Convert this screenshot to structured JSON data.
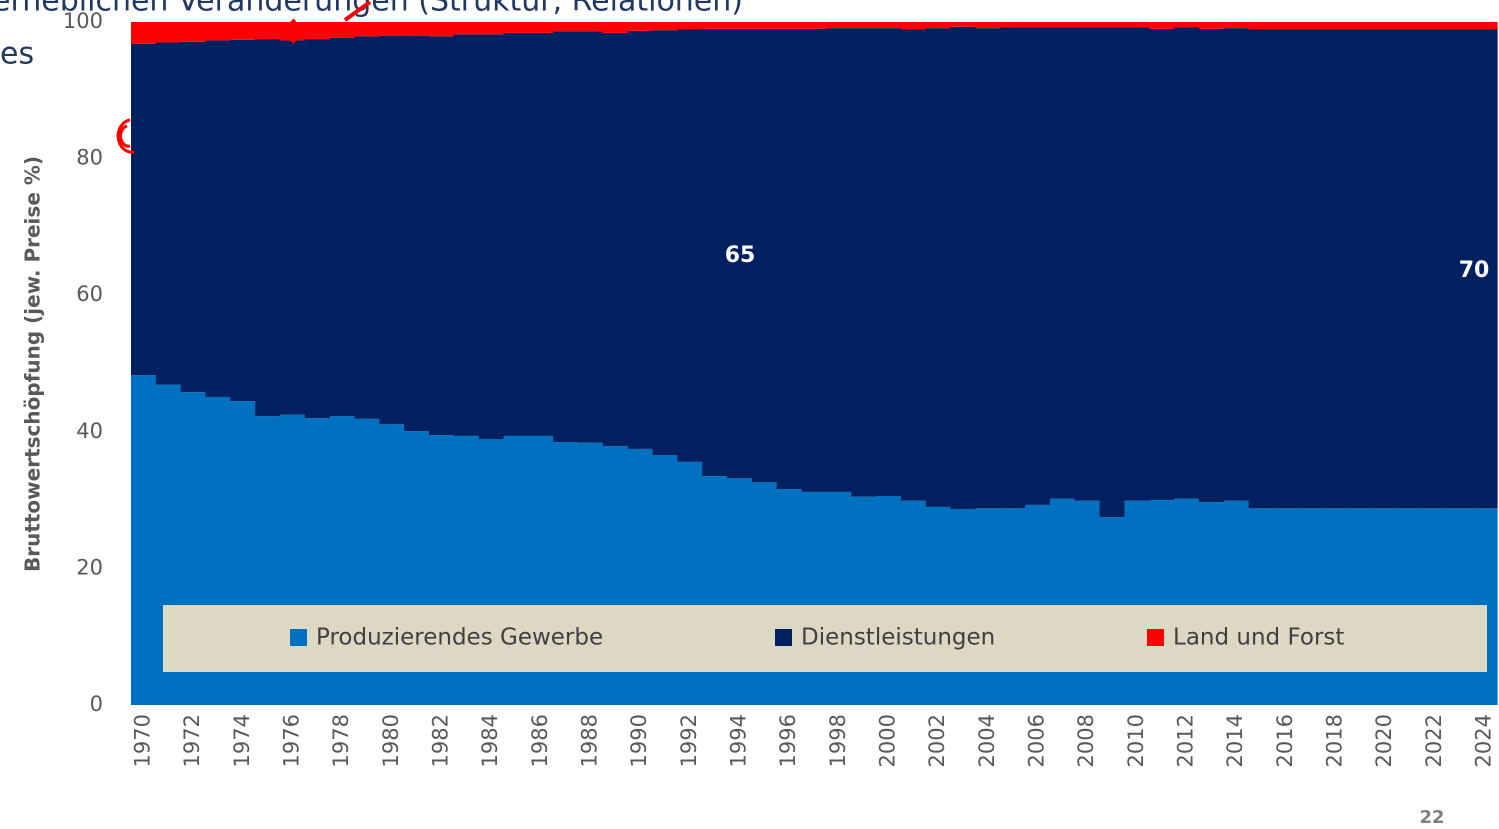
{
  "header": {
    "title": "erheblichen Veränderungen (Struktur, Relationen)",
    "subtitle": "es"
  },
  "chart_data": {
    "type": "stacked_bar",
    "y_label": "Bruttowertschöpfung  (jew. Preise %)",
    "categories": [
      "1970",
      null,
      "1972",
      null,
      "1974",
      null,
      "1976",
      null,
      "1978",
      null,
      "1980",
      null,
      "1982",
      null,
      "1984",
      null,
      "1986",
      null,
      "1988",
      null,
      "1990",
      null,
      "1992",
      null,
      "1994",
      null,
      "1996",
      null,
      "1998",
      null,
      "2000",
      null,
      "2002",
      null,
      "2004",
      null,
      "2006",
      null,
      "2008",
      null,
      "2010",
      null,
      "2012",
      null,
      "2014",
      null,
      "2016",
      null,
      "2018",
      null,
      "2020",
      null,
      "2022",
      null,
      "2024"
    ],
    "series": [
      {
        "name": "Produzierendes Gewerbe",
        "color": "#0070c0",
        "values": [
          48.3,
          46.9,
          45.8,
          45.1,
          44.5,
          42.3,
          42.5,
          42.0,
          42.3,
          41.9,
          41.1,
          40.1,
          39.5,
          39.4,
          38.9,
          39.4,
          39.4,
          38.5,
          38.4,
          37.9,
          37.5,
          36.6,
          35.6,
          33.5,
          33.2,
          32.6,
          31.6,
          31.2,
          31.2,
          30.5,
          30.6,
          29.9,
          29.0,
          28.7,
          28.8,
          28.8,
          29.3,
          30.2,
          29.9,
          27.5,
          29.9,
          30.0,
          30.2,
          29.7,
          29.9,
          28.8,
          28.8,
          28.8,
          28.8,
          28.8,
          28.8,
          28.8,
          28.8,
          28.8,
          28.8
        ]
      },
      {
        "name": "Dienstleistungen",
        "color": "#002060",
        "values": [
          48.5,
          50.1,
          51.3,
          52.2,
          52.9,
          55.2,
          54.8,
          55.5,
          55.4,
          56.0,
          56.9,
          57.9,
          58.4,
          58.8,
          59.3,
          59.0,
          59.0,
          60.1,
          60.2,
          60.5,
          61.2,
          62.2,
          63.3,
          65.5,
          65.8,
          66.4,
          67.4,
          67.8,
          67.9,
          68.6,
          68.5,
          69.0,
          70.1,
          70.6,
          70.3,
          70.4,
          69.9,
          69.0,
          69.3,
          71.7,
          69.3,
          69.0,
          69.0,
          69.3,
          69.2,
          70.1,
          70.1,
          70.1,
          70.1,
          70.1,
          70.1,
          70.1,
          70.1,
          70.1,
          70.1
        ]
      },
      {
        "name": "Land und Forst",
        "color": "#ff0000",
        "values": [
          3.2,
          3.0,
          2.9,
          2.7,
          2.6,
          2.5,
          2.7,
          2.5,
          2.3,
          2.1,
          2.0,
          2.0,
          2.1,
          1.8,
          1.8,
          1.6,
          1.6,
          1.4,
          1.4,
          1.6,
          1.3,
          1.2,
          1.1,
          1.0,
          1.0,
          1.0,
          1.0,
          1.0,
          0.9,
          0.9,
          0.9,
          1.1,
          0.9,
          0.7,
          0.9,
          0.8,
          0.8,
          0.8,
          0.8,
          0.8,
          0.8,
          1.0,
          0.8,
          1.0,
          0.9,
          1.1,
          1.1,
          1.1,
          1.1,
          1.1,
          1.1,
          1.1,
          1.1,
          1.1,
          1.1
        ]
      }
    ],
    "annotations": [
      "65",
      "70"
    ],
    "ylim": [
      0,
      100
    ],
    "yticks": [
      0,
      20,
      40,
      60,
      80,
      100
    ],
    "grid": false,
    "legend": "bottom"
  },
  "page_number": "22"
}
